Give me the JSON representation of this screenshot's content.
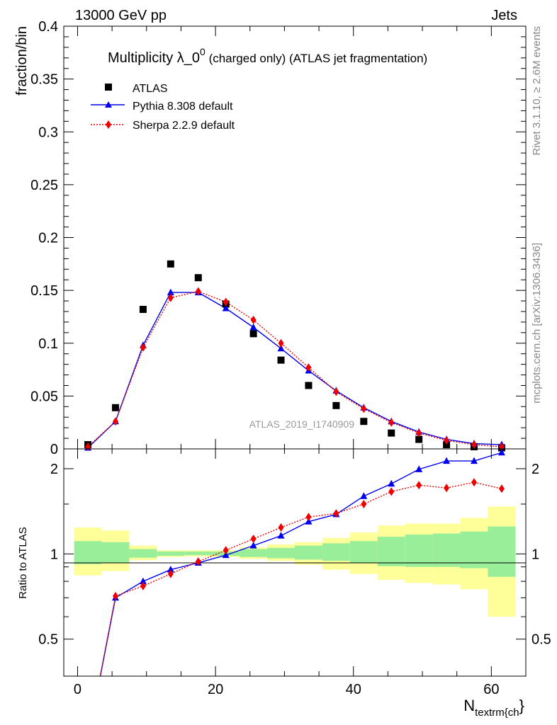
{
  "header": {
    "left": "13000 GeV pp",
    "right": "Jets"
  },
  "chart_data": {
    "type": "scatter",
    "title_main": "Multiplicity λ_0",
    "title_sup": "0",
    "title_rest": " (charged only) (ATLAS jet fragmentation)",
    "ylabel": "fraction/bin",
    "ratio_ylabel": "Ratio to ATLAS",
    "xlabel_main": "N",
    "xlabel_sub": "textrm{ch",
    "xlabel_close": "}",
    "analysis_label": "ATLAS_2019_I1740909",
    "side_label_top": "Rivet 3.1.10, ≥ 2.6M events",
    "side_label_bottom": "mcplots.cern.ch [arXiv:1306.3436]",
    "xlim": [
      -2,
      65
    ],
    "ylim": [
      0,
      0.4
    ],
    "ratio_ylim": [
      0.37,
      2.35
    ],
    "xticks": [
      0,
      20,
      40,
      60
    ],
    "xtick_labels": [
      "0",
      "20",
      "40",
      "60"
    ],
    "yticks": [
      0,
      0.05,
      0.1,
      0.15,
      0.2,
      0.25,
      0.3,
      0.35,
      0.4
    ],
    "ytick_labels": [
      "0",
      "0.05",
      "0.1",
      "0.15",
      "0.2",
      "0.25",
      "0.3",
      "0.35",
      "0.4"
    ],
    "ratio_yticks": [
      0.5,
      1,
      2
    ],
    "ratio_ytick_labels": [
      "0.5",
      "1",
      "2"
    ],
    "bin_edges": [
      -0.5,
      3.5,
      7.5,
      11.5,
      15.5,
      19.5,
      23.5,
      27.5,
      31.5,
      35.5,
      39.5,
      43.5,
      47.5,
      51.5,
      55.5,
      59.5,
      63.5
    ],
    "x": [
      1.5,
      5.5,
      9.5,
      13.5,
      17.5,
      21.5,
      25.5,
      29.5,
      33.5,
      37.5,
      41.5,
      45.5,
      49.5,
      53.5,
      57.5,
      61.5
    ],
    "series": [
      {
        "name": "ATLAS",
        "color": "#000000",
        "marker": "square",
        "values": [
          0.004,
          0.039,
          0.132,
          0.175,
          0.162,
          0.137,
          0.109,
          0.084,
          0.06,
          0.041,
          0.026,
          0.015,
          0.009,
          0.004,
          0.002,
          0.001
        ]
      },
      {
        "name": "Pythia 8.308 default",
        "color": "#0000ee",
        "marker": "triangle",
        "line": "solid",
        "values": [
          0.001,
          0.026,
          0.098,
          0.148,
          0.148,
          0.133,
          0.115,
          0.095,
          0.074,
          0.055,
          0.039,
          0.026,
          0.016,
          0.009,
          0.005,
          0.004
        ],
        "ratio": [
          0.22,
          0.7,
          0.8,
          0.88,
          0.93,
          0.99,
          1.07,
          1.16,
          1.3,
          1.38,
          1.6,
          1.77,
          1.99,
          2.13,
          2.13,
          2.28
        ]
      },
      {
        "name": "Sherpa 2.2.9 default",
        "color": "#ee0000",
        "marker": "diamond",
        "line": "dotted",
        "values": [
          0.002,
          0.026,
          0.096,
          0.143,
          0.149,
          0.139,
          0.122,
          0.1,
          0.077,
          0.054,
          0.038,
          0.025,
          0.015,
          0.008,
          0.004,
          0.002
        ],
        "ratio": [
          0.22,
          0.71,
          0.77,
          0.85,
          0.94,
          1.03,
          1.13,
          1.24,
          1.35,
          1.39,
          1.5,
          1.66,
          1.75,
          1.71,
          1.79,
          1.7
        ]
      }
    ],
    "uncertainty_bands": {
      "inner_color": "#99ee99",
      "outer_color": "#ffff99",
      "inner_lo": [
        0.92,
        0.93,
        0.97,
        0.985,
        0.99,
        0.985,
        0.975,
        0.965,
        0.955,
        0.945,
        0.93,
        0.905,
        0.9,
        0.9,
        0.89,
        0.83
      ],
      "inner_hi": [
        1.11,
        1.1,
        1.04,
        1.02,
        1.02,
        1.02,
        1.04,
        1.05,
        1.07,
        1.09,
        1.11,
        1.15,
        1.17,
        1.18,
        1.2,
        1.25
      ],
      "outer_lo": [
        0.84,
        0.87,
        0.95,
        0.975,
        0.98,
        0.975,
        0.96,
        0.945,
        0.915,
        0.88,
        0.85,
        0.81,
        0.79,
        0.78,
        0.75,
        0.6
      ],
      "outer_hi": [
        1.24,
        1.21,
        1.07,
        1.03,
        1.03,
        1.03,
        1.055,
        1.08,
        1.1,
        1.14,
        1.19,
        1.26,
        1.28,
        1.28,
        1.34,
        1.47
      ]
    }
  }
}
